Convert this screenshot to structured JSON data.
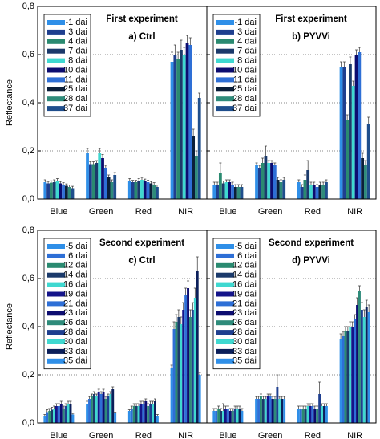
{
  "chart_data": [
    {
      "type": "bar",
      "title": "First experiment",
      "subtitle": "a) Ctrl",
      "ylabel": "Reflectance",
      "categories": [
        "Blue",
        "Green",
        "Red",
        "NIR"
      ],
      "ylim": [
        0,
        0.8
      ],
      "yticks": [
        {
          "value": 0,
          "label": "0,0"
        },
        {
          "value": 0.2,
          "label": "0,2"
        },
        {
          "value": 0.4,
          "label": "0,4"
        },
        {
          "value": 0.6,
          "label": "0,6"
        },
        {
          "value": 0.8,
          "label": "0,8"
        }
      ],
      "series": [
        {
          "name": "-1 dai",
          "color": "#2f8fe8",
          "values": [
            0.07,
            0.19,
            0.075,
            0.57
          ],
          "errors": [
            0.01,
            0.02,
            0.01,
            0.04
          ]
        },
        {
          "name": "3 dai",
          "color": "#1f3f8f",
          "values": [
            0.065,
            0.145,
            0.07,
            0.6
          ],
          "errors": [
            0.008,
            0.01,
            0.008,
            0.04
          ]
        },
        {
          "name": "4 dai",
          "color": "#2a8a70",
          "values": [
            0.068,
            0.145,
            0.07,
            0.58
          ],
          "errors": [
            0.008,
            0.01,
            0.008,
            0.03
          ]
        },
        {
          "name": "7 dai",
          "color": "#1b3a6b",
          "values": [
            0.07,
            0.15,
            0.075,
            0.62
          ],
          "errors": [
            0.01,
            0.01,
            0.01,
            0.04
          ]
        },
        {
          "name": "8 dai",
          "color": "#3fd8d0",
          "values": [
            0.075,
            0.19,
            0.08,
            0.6
          ],
          "errors": [
            0.01,
            0.02,
            0.01,
            0.03
          ]
        },
        {
          "name": "10 dai",
          "color": "#0c0c70",
          "values": [
            0.065,
            0.17,
            0.075,
            0.65
          ],
          "errors": [
            0.008,
            0.015,
            0.008,
            0.03
          ]
        },
        {
          "name": "11 dai",
          "color": "#2e6fd6",
          "values": [
            0.06,
            0.13,
            0.07,
            0.64
          ],
          "errors": [
            0.008,
            0.01,
            0.008,
            0.03
          ]
        },
        {
          "name": "25 dai",
          "color": "#0b1f3a",
          "values": [
            0.055,
            0.09,
            0.065,
            0.26
          ],
          "errors": [
            0.008,
            0.01,
            0.008,
            0.03
          ]
        },
        {
          "name": "28 dai",
          "color": "#2e8b7a",
          "values": [
            0.05,
            0.07,
            0.06,
            0.18
          ],
          "errors": [
            0.008,
            0.01,
            0.008,
            0.02
          ]
        },
        {
          "name": "37 dai",
          "color": "#1f4e8c",
          "values": [
            0.045,
            0.1,
            0.05,
            0.42
          ],
          "errors": [
            0.008,
            0.01,
            0.008,
            0.02
          ]
        }
      ]
    },
    {
      "type": "bar",
      "title": "First experiment",
      "subtitle": "b) PYVVi",
      "categories": [
        "Blue",
        "Green",
        "Red",
        "NIR"
      ],
      "ylim": [
        0,
        0.8
      ],
      "yticks": [
        0.2,
        0.4,
        0.6
      ],
      "series": [
        {
          "name": "-1 dai",
          "color": "#2f8fe8",
          "values": [
            0.06,
            0.14,
            0.07,
            0.55
          ],
          "errors": [
            0.01,
            0.01,
            0.01,
            0.02
          ]
        },
        {
          "name": "3 dai",
          "color": "#1f3f8f",
          "values": [
            0.06,
            0.13,
            0.05,
            0.55
          ],
          "errors": [
            0.01,
            0.01,
            0.01,
            0.02
          ]
        },
        {
          "name": "4 dai",
          "color": "#2a8a70",
          "values": [
            0.11,
            0.15,
            0.08,
            0.33
          ],
          "errors": [
            0.04,
            0.02,
            0.02,
            0.02
          ]
        },
        {
          "name": "7 dai",
          "color": "#1b3a6b",
          "values": [
            0.065,
            0.18,
            0.12,
            0.56
          ],
          "errors": [
            0.01,
            0.04,
            0.04,
            0.03
          ]
        },
        {
          "name": "8 dai",
          "color": "#3fd8d0",
          "values": [
            0.07,
            0.15,
            0.06,
            0.47
          ],
          "errors": [
            0.01,
            0.01,
            0.01,
            0.02
          ]
        },
        {
          "name": "10 dai",
          "color": "#0c0c70",
          "values": [
            0.07,
            0.15,
            0.06,
            0.6
          ],
          "errors": [
            0.01,
            0.01,
            0.01,
            0.02
          ]
        },
        {
          "name": "11 dai",
          "color": "#2e6fd6",
          "values": [
            0.06,
            0.14,
            0.05,
            0.61
          ],
          "errors": [
            0.01,
            0.01,
            0.01,
            0.02
          ]
        },
        {
          "name": "25 dai",
          "color": "#0b1f3a",
          "values": [
            0.05,
            0.08,
            0.06,
            0.17
          ],
          "errors": [
            0.01,
            0.01,
            0.01,
            0.02
          ]
        },
        {
          "name": "28 dai",
          "color": "#2e8b7a",
          "values": [
            0.05,
            0.07,
            0.06,
            0.14
          ],
          "errors": [
            0.01,
            0.01,
            0.01,
            0.02
          ]
        },
        {
          "name": "37 dai",
          "color": "#1f4e8c",
          "values": [
            0.05,
            0.08,
            0.07,
            0.31
          ],
          "errors": [
            0.01,
            0.01,
            0.01,
            0.03
          ]
        }
      ]
    },
    {
      "type": "bar",
      "title": "Second experiment",
      "subtitle": "c) Ctrl",
      "ylabel": "Reflectance",
      "categories": [
        "Blue",
        "Green",
        "Red",
        "NIR"
      ],
      "ylim": [
        0,
        0.8
      ],
      "yticks": [
        {
          "value": 0,
          "label": "0,0"
        },
        {
          "value": 0.2,
          "label": "0,2"
        },
        {
          "value": 0.4,
          "label": "0,4"
        },
        {
          "value": 0.6,
          "label": "0,6"
        },
        {
          "value": 0.8,
          "label": "0,8"
        }
      ],
      "series": [
        {
          "name": "-5 dai",
          "color": "#2f8fe8",
          "values": [
            0.03,
            0.08,
            0.05,
            0.23
          ],
          "errors": [
            0.005,
            0.01,
            0.005,
            0.01
          ]
        },
        {
          "name": "6 dai",
          "color": "#2e6fd6",
          "values": [
            0.045,
            0.1,
            0.06,
            0.39
          ],
          "errors": [
            0.01,
            0.01,
            0.01,
            0.03
          ]
        },
        {
          "name": "12 dai",
          "color": "#2a8a70",
          "values": [
            0.05,
            0.11,
            0.07,
            0.42
          ],
          "errors": [
            0.01,
            0.01,
            0.01,
            0.03
          ]
        },
        {
          "name": "14 dai",
          "color": "#1b3a6b",
          "values": [
            0.055,
            0.12,
            0.07,
            0.44
          ],
          "errors": [
            0.01,
            0.01,
            0.01,
            0.03
          ]
        },
        {
          "name": "16 dai",
          "color": "#3fd8d0",
          "values": [
            0.06,
            0.11,
            0.07,
            0.41
          ],
          "errors": [
            0.01,
            0.01,
            0.01,
            0.03
          ]
        },
        {
          "name": "19 dai",
          "color": "#14148a",
          "values": [
            0.07,
            0.13,
            0.08,
            0.47
          ],
          "errors": [
            0.01,
            0.01,
            0.01,
            0.03
          ]
        },
        {
          "name": "21 dai",
          "color": "#2e6fd6",
          "values": [
            0.07,
            0.12,
            0.08,
            0.53
          ],
          "errors": [
            0.01,
            0.01,
            0.01,
            0.03
          ]
        },
        {
          "name": "23 dai",
          "color": "#0c0c70",
          "values": [
            0.08,
            0.13,
            0.09,
            0.56
          ],
          "errors": [
            0.01,
            0.01,
            0.01,
            0.03
          ]
        },
        {
          "name": "26 dai",
          "color": "#2e8b7a",
          "values": [
            0.06,
            0.1,
            0.07,
            0.44
          ],
          "errors": [
            0.01,
            0.01,
            0.01,
            0.03
          ]
        },
        {
          "name": "28 dai",
          "color": "#1f3f8f",
          "values": [
            0.07,
            0.11,
            0.08,
            0.47
          ],
          "errors": [
            0.01,
            0.01,
            0.01,
            0.03
          ]
        },
        {
          "name": "30 dai",
          "color": "#3fd8d0",
          "values": [
            0.08,
            0.12,
            0.08,
            0.52
          ],
          "errors": [
            0.01,
            0.01,
            0.01,
            0.04
          ]
        },
        {
          "name": "33 dai",
          "color": "#0b1f5a",
          "values": [
            0.08,
            0.14,
            0.09,
            0.63
          ],
          "errors": [
            0.01,
            0.01,
            0.01,
            0.06
          ]
        },
        {
          "name": "35 dai",
          "color": "#2f8fe8",
          "values": [
            0.035,
            0.04,
            0.03,
            0.2
          ],
          "errors": [
            0.005,
            0.005,
            0.005,
            0.01
          ]
        }
      ]
    },
    {
      "type": "bar",
      "title": "Second experiment",
      "subtitle": "d) PYVVi",
      "categories": [
        "Blue",
        "Green",
        "Red",
        "NIR"
      ],
      "ylim": [
        0,
        0.8
      ],
      "yticks": [
        0.2,
        0.4,
        0.6
      ],
      "series": [
        {
          "name": "-5 dai",
          "color": "#2f8fe8",
          "values": [
            0.05,
            0.1,
            0.06,
            0.35
          ],
          "errors": [
            0.01,
            0.01,
            0.01,
            0.02
          ]
        },
        {
          "name": "6 dai",
          "color": "#2e6fd6",
          "values": [
            0.05,
            0.1,
            0.06,
            0.36
          ],
          "errors": [
            0.01,
            0.01,
            0.01,
            0.02
          ]
        },
        {
          "name": "12 dai",
          "color": "#2a8a70",
          "values": [
            0.06,
            0.11,
            0.06,
            0.38
          ],
          "errors": [
            0.01,
            0.01,
            0.01,
            0.02
          ]
        },
        {
          "name": "14 dai",
          "color": "#1b3a6b",
          "values": [
            0.05,
            0.1,
            0.06,
            0.38
          ],
          "errors": [
            0.01,
            0.01,
            0.01,
            0.02
          ]
        },
        {
          "name": "16 dai",
          "color": "#3fd8d0",
          "values": [
            0.05,
            0.1,
            0.07,
            0.4
          ],
          "errors": [
            0.03,
            0.01,
            0.01,
            0.02
          ]
        },
        {
          "name": "19 dai",
          "color": "#14148a",
          "values": [
            0.06,
            0.11,
            0.07,
            0.4
          ],
          "errors": [
            0.01,
            0.01,
            0.01,
            0.02
          ]
        },
        {
          "name": "21 dai",
          "color": "#2e6fd6",
          "values": [
            0.06,
            0.11,
            0.07,
            0.43
          ],
          "errors": [
            0.01,
            0.01,
            0.01,
            0.02
          ]
        },
        {
          "name": "23 dai",
          "color": "#0c0c70",
          "values": [
            0.05,
            0.1,
            0.06,
            0.49
          ],
          "errors": [
            0.01,
            0.01,
            0.01,
            0.03
          ]
        },
        {
          "name": "26 dai",
          "color": "#2e8b7a",
          "values": [
            0.05,
            0.1,
            0.06,
            0.55
          ],
          "errors": [
            0.01,
            0.01,
            0.01,
            0.02
          ]
        },
        {
          "name": "28 dai",
          "color": "#1f3f8f",
          "values": [
            0.06,
            0.15,
            0.12,
            0.47
          ],
          "errors": [
            0.01,
            0.05,
            0.05,
            0.03
          ]
        },
        {
          "name": "30 dai",
          "color": "#3fd8d0",
          "values": [
            0.06,
            0.1,
            0.07,
            0.44
          ],
          "errors": [
            0.01,
            0.01,
            0.01,
            0.03
          ]
        },
        {
          "name": "33 dai",
          "color": "#0b1f5a",
          "values": [
            0.06,
            0.1,
            0.07,
            0.48
          ],
          "errors": [
            0.01,
            0.01,
            0.01,
            0.03
          ]
        },
        {
          "name": "35 dai",
          "color": "#2f8fe8",
          "values": [
            0.05,
            0.1,
            0.07,
            0.46
          ],
          "errors": [
            0.01,
            0.01,
            0.01,
            0.03
          ]
        }
      ]
    }
  ]
}
